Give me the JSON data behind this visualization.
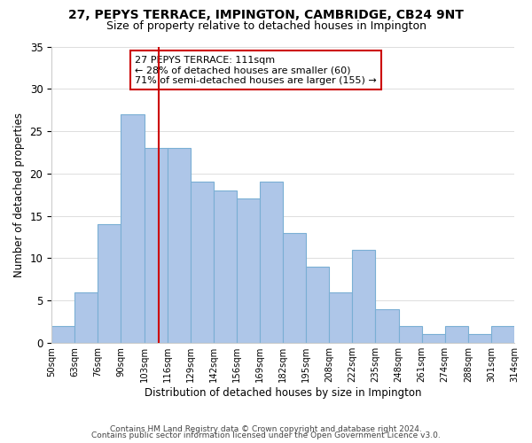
{
  "title": "27, PEPYS TERRACE, IMPINGTON, CAMBRIDGE, CB24 9NT",
  "subtitle": "Size of property relative to detached houses in Impington",
  "xlabel": "Distribution of detached houses by size in Impington",
  "ylabel": "Number of detached properties",
  "bin_labels": [
    "50sqm",
    "63sqm",
    "76sqm",
    "90sqm",
    "103sqm",
    "116sqm",
    "129sqm",
    "142sqm",
    "156sqm",
    "169sqm",
    "182sqm",
    "195sqm",
    "208sqm",
    "222sqm",
    "235sqm",
    "248sqm",
    "261sqm",
    "274sqm",
    "288sqm",
    "301sqm",
    "314sqm"
  ],
  "bar_heights": [
    2,
    6,
    14,
    27,
    23,
    23,
    19,
    18,
    17,
    19,
    13,
    9,
    6,
    11,
    4,
    2,
    1,
    2,
    1,
    2
  ],
  "bar_color": "#aec6e8",
  "bar_edge_color": "#7aafd4",
  "vline_color": "#cc0000",
  "ylim": [
    0,
    35
  ],
  "annotation_text": "27 PEPYS TERRACE: 111sqm\n← 28% of detached houses are smaller (60)\n71% of semi-detached houses are larger (155) →",
  "annotation_box_color": "#ffffff",
  "annotation_box_edge": "#cc0000",
  "footer1": "Contains HM Land Registry data © Crown copyright and database right 2024.",
  "footer2": "Contains public sector information licensed under the Open Government Licence v3.0."
}
